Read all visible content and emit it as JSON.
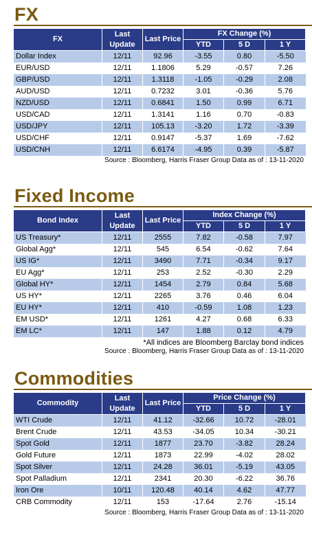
{
  "fx": {
    "title": "FX",
    "headers": {
      "name": "FX",
      "last_update": "Last Update",
      "last_price": "Last Price",
      "change_group": "FX Change (%)",
      "ytd": "YTD",
      "5d": "5 D",
      "1y": "1 Y"
    },
    "rows": [
      [
        "Dollar Index",
        "12/11",
        "92.96",
        "-3.55",
        "0.80",
        "-5.50"
      ],
      [
        "EUR/USD",
        "12/11",
        "1.1806",
        "5.29",
        "-0.57",
        "7.26"
      ],
      [
        "GBP/USD",
        "12/11",
        "1.3118",
        "-1.05",
        "-0.29",
        "2.08"
      ],
      [
        "AUD/USD",
        "12/11",
        "0.7232",
        "3.01",
        "-0.36",
        "5.76"
      ],
      [
        "NZD/USD",
        "12/11",
        "0.6841",
        "1.50",
        "0.99",
        "6.71"
      ],
      [
        "USD/CAD",
        "12/11",
        "1.3141",
        "1.16",
        "0.70",
        "-0.83"
      ],
      [
        "USD/JPY",
        "12/11",
        "105.13",
        "-3.20",
        "1.72",
        "-3.39"
      ],
      [
        "USD/CHF",
        "12/11",
        "0.9147",
        "-5.37",
        "1.69",
        "-7.62"
      ],
      [
        "USD/CNH",
        "12/11",
        "6.6174",
        "-4.95",
        "0.39",
        "-5.87"
      ]
    ],
    "source": "Source : Bloomberg, Harris Fraser Group Data as of : 13-11-2020"
  },
  "fixed_income": {
    "title": "Fixed Income",
    "headers": {
      "name": "Bond Index",
      "last_update": "Last Update",
      "last_price": "Last Price",
      "change_group": "Index Change (%)",
      "ytd": "YTD",
      "5d": "5 D",
      "1y": "1 Y"
    },
    "rows": [
      [
        "US Treasury*",
        "12/11",
        "2555",
        "7.82",
        "-0.58",
        "7.97"
      ],
      [
        "Global Agg*",
        "12/11",
        "545",
        "6.54",
        "-0.62",
        "7.64"
      ],
      [
        "US IG*",
        "12/11",
        "3490",
        "7.71",
        "-0.34",
        "9.17"
      ],
      [
        "EU Agg*",
        "12/11",
        "253",
        "2.52",
        "-0.30",
        "2.29"
      ],
      [
        "Global HY*",
        "12/11",
        "1454",
        "2.79",
        "0.84",
        "5.68"
      ],
      [
        "US HY*",
        "12/11",
        "2265",
        "3.76",
        "0.46",
        "6.04"
      ],
      [
        "EU HY*",
        "12/11",
        "410",
        "-0.59",
        "1.08",
        "1.23"
      ],
      [
        "EM USD*",
        "12/11",
        "1261",
        "4.27",
        "0.68",
        "6.33"
      ],
      [
        "EM LC*",
        "12/11",
        "147",
        "1.88",
        "0.12",
        "4.79"
      ]
    ],
    "note": "*All indices are Bloomberg Barclay bond indices",
    "source": "Source : Bloomberg, Harris Fraser Group Data as of : 13-11-2020"
  },
  "commodities": {
    "title": "Commodities",
    "headers": {
      "name": "Commodity",
      "last_update": "Last Update",
      "last_price": "Last Price",
      "change_group": "Price Change (%)",
      "ytd": "YTD",
      "5d": "5 D",
      "1y": "1 Y"
    },
    "rows": [
      [
        "WTI Crude",
        "12/11",
        "41.12",
        "-32.66",
        "10.72",
        "-28.01"
      ],
      [
        "Brent Crude",
        "12/11",
        "43.53",
        "-34.05",
        "10.34",
        "-30.21"
      ],
      [
        "Spot Gold",
        "12/11",
        "1877",
        "23.70",
        "-3.82",
        "28.24"
      ],
      [
        "Gold Future",
        "12/11",
        "1873",
        "22.99",
        "-4.02",
        "28.02"
      ],
      [
        "Spot Silver",
        "12/11",
        "24.28",
        "36.01",
        "-5.19",
        "43.05"
      ],
      [
        "Spot Palladium",
        "12/11",
        "2341",
        "20.30",
        "-6.22",
        "36.76"
      ],
      [
        "Iron Ore",
        "10/11",
        "120.48",
        "40.14",
        "4.62",
        "47.77"
      ],
      [
        "CRB Commodity",
        "12/11",
        "153",
        "-17.64",
        "2.76",
        "-15.14"
      ]
    ],
    "source": "Source : Bloomberg, Harris Fraser Group Data as of : 13-11-2020"
  },
  "colors": {
    "title": "#7a5a12",
    "header_bg": "#2a3b87",
    "band": "#b7cbe9"
  }
}
